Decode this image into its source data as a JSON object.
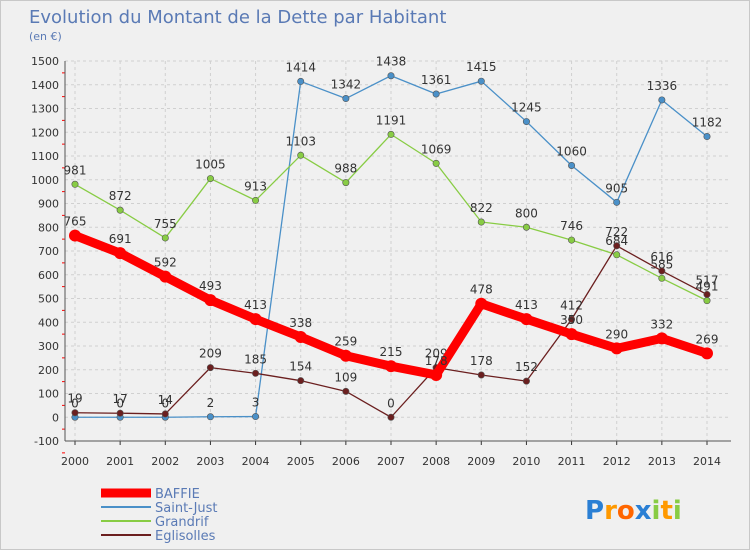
{
  "chart_data": {
    "type": "line",
    "title": "Evolution du Montant de la Dette par Habitant",
    "subtitle": "(en €)",
    "x": [
      "2000",
      "2001",
      "2002",
      "2003",
      "2004",
      "2005",
      "2006",
      "2007",
      "2008",
      "2009",
      "2010",
      "2011",
      "2012",
      "2013",
      "2014"
    ],
    "ylim": [
      -100,
      1500
    ],
    "yticks": [
      -100,
      0,
      100,
      200,
      300,
      400,
      500,
      600,
      700,
      800,
      900,
      1000,
      1100,
      1200,
      1300,
      1400,
      1500
    ],
    "grid": true,
    "legend_position": "bottom-left",
    "series": [
      {
        "name": "BAFFIE",
        "color": "#ff0000",
        "values": [
          765,
          691,
          592,
          493,
          413,
          338,
          259,
          215,
          178,
          478,
          413,
          350,
          290,
          332,
          269
        ],
        "labels": [
          "765",
          "691",
          "592",
          "493",
          "413",
          "338",
          "259",
          "215",
          "178",
          "478",
          "413",
          "350",
          "290",
          "332",
          "269"
        ]
      },
      {
        "name": "Saint-Just",
        "color": "#4a90c8",
        "values": [
          0,
          0,
          0,
          2,
          3,
          1414,
          1342,
          1438,
          1361,
          1415,
          1245,
          1060,
          905,
          1336,
          1182
        ],
        "labels": [
          "0",
          "0",
          "0",
          "2",
          "3",
          "1414",
          "1342",
          "1438",
          "1361",
          "1415",
          "1245",
          "1060",
          "905",
          "1336",
          "1182"
        ]
      },
      {
        "name": "Grandrif",
        "color": "#88cc44",
        "values": [
          981,
          872,
          755,
          1005,
          913,
          1103,
          988,
          1191,
          1069,
          822,
          800,
          746,
          684,
          585,
          491
        ],
        "labels": [
          "981",
          "872",
          "755",
          "1005",
          "913",
          "1103",
          "988",
          "1191",
          "1069",
          "822",
          "800",
          "746",
          "684",
          "585",
          "491"
        ]
      },
      {
        "name": "Eglisolles",
        "color": "#6b1f1f",
        "values": [
          19,
          17,
          14,
          209,
          185,
          154,
          109,
          0,
          209,
          178,
          152,
          412,
          722,
          616,
          517
        ],
        "labels": [
          "19",
          "17",
          "14",
          "209",
          "185",
          "154",
          "109",
          "0",
          "209",
          "178",
          "152",
          "412",
          "722",
          "616",
          "517"
        ]
      }
    ]
  },
  "logo": {
    "text": "Proxiti",
    "letters": [
      "P",
      "r",
      "o",
      "x",
      "i",
      "t",
      "i"
    ],
    "colors": [
      "#2a7fd4",
      "#ff9900",
      "#ff6600",
      "#2a7fd4",
      "#88cc44",
      "#ff9900",
      "#88cc44"
    ]
  }
}
